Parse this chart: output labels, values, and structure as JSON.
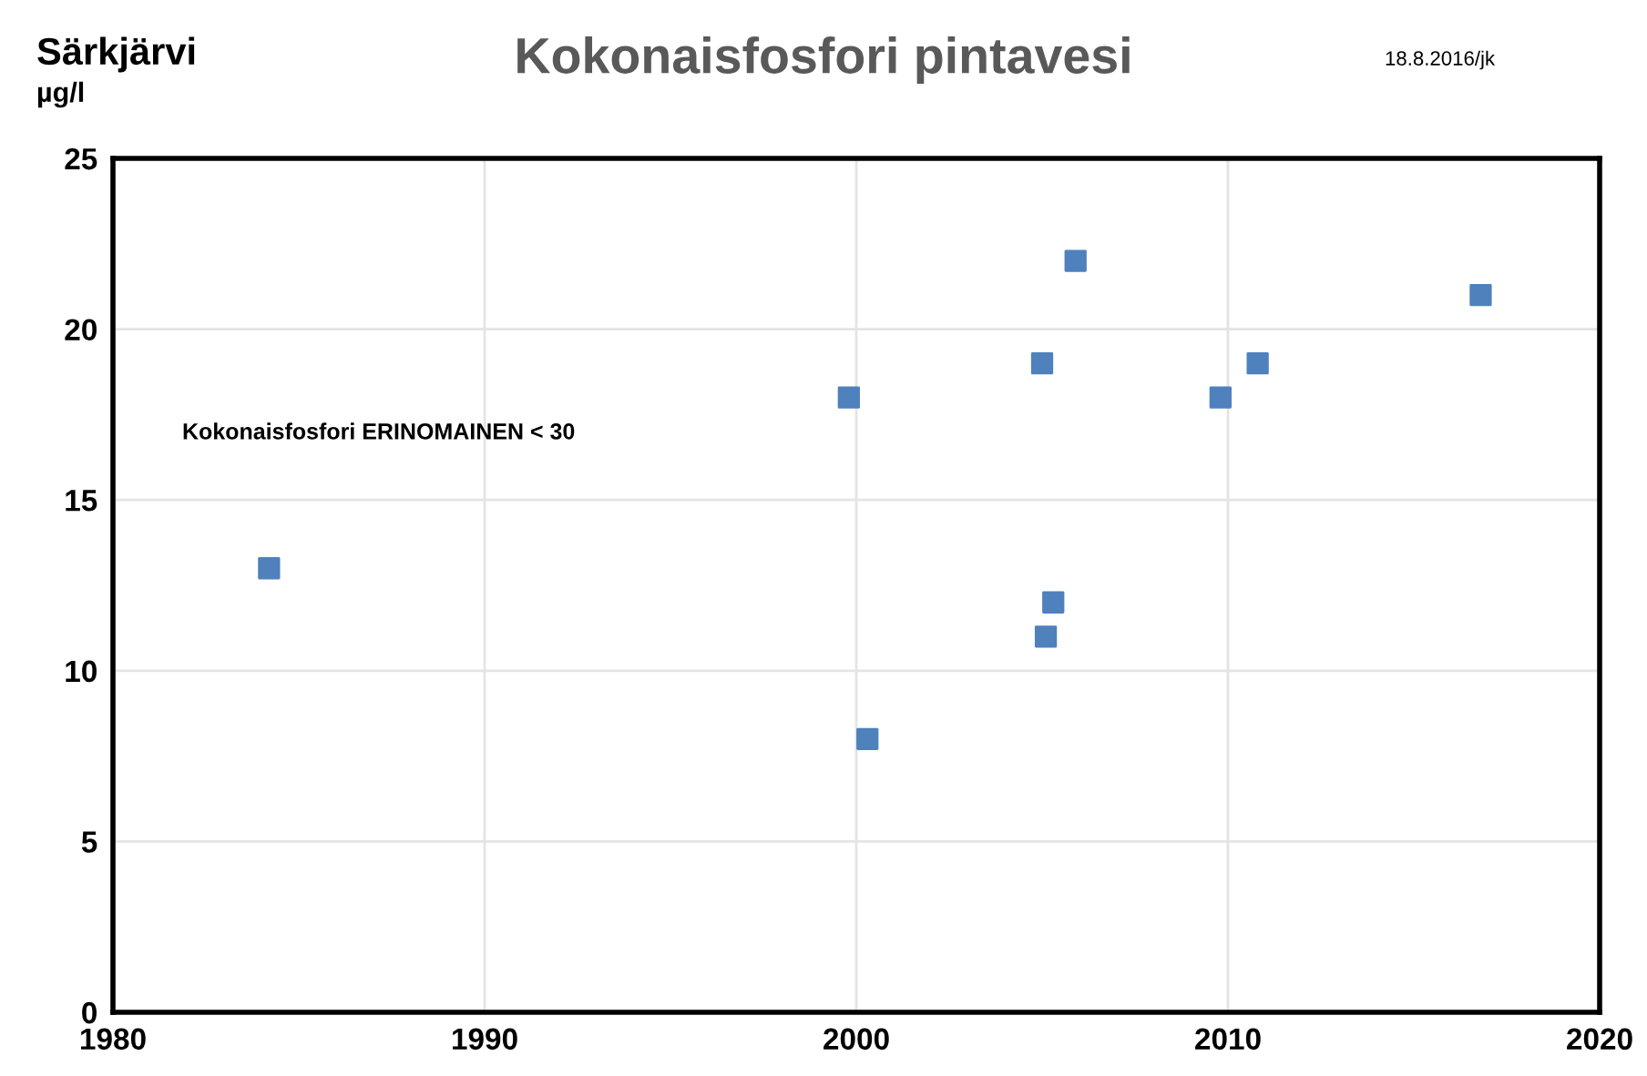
{
  "chart_data": {
    "type": "scatter",
    "title": "Kokonaisfosfori pintavesi",
    "ylabel": "µg/l",
    "annotations": [
      "Särkjärvi",
      "18.8.2016/jk",
      "Kokonaisfosfori ERINOMAINEN < 30"
    ],
    "x": [
      1984.2,
      1999.8,
      2000.3,
      2005.0,
      2005.9,
      2005.1,
      2005.3,
      2009.8,
      2010.8,
      2016.8
    ],
    "series": [
      {
        "color": "#4f81bd",
        "values": [
          13,
          18,
          8,
          19,
          22,
          11,
          12,
          18,
          19,
          21
        ]
      }
    ],
    "xlim": [
      1980,
      2020
    ],
    "ylim": [
      0,
      25
    ],
    "xticks": [
      1980,
      1990,
      2000,
      2010,
      2020
    ],
    "yticks": [
      0,
      5,
      10,
      15,
      20,
      25
    ],
    "grid": true,
    "marker": "square",
    "legend": false
  }
}
